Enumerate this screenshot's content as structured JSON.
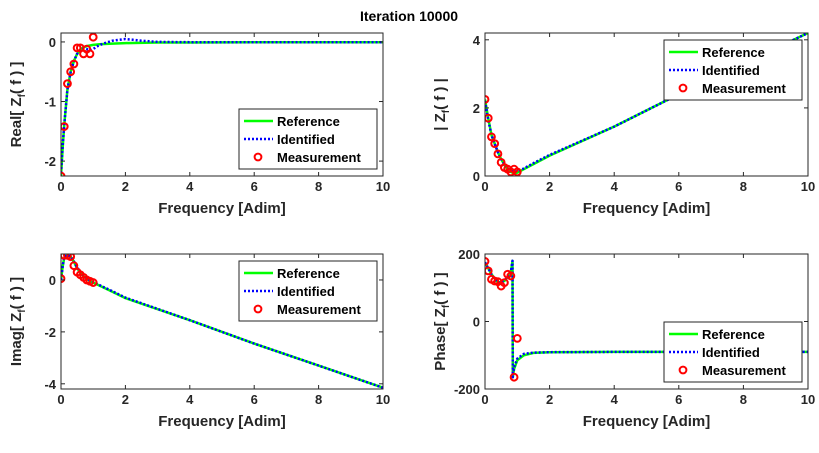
{
  "figure": {
    "title": "Iteration 10000"
  },
  "colors": {
    "reference": "#00ff00",
    "identified": "#0000ff",
    "measurement": "#ff0000",
    "axes": "#262626"
  },
  "legend": {
    "entries": [
      "Reference",
      "Identified",
      "Measurement"
    ]
  },
  "chart_data": [
    {
      "type": "line",
      "ylabel_main": "Real[ Z",
      "ylabel_sub": "f",
      "ylabel_tail": "( f ) ]",
      "xlabel": "Frequency [Adim]",
      "xlim": [
        0,
        10
      ],
      "ylim": [
        -2.25,
        0.15
      ],
      "xticks": [
        0,
        2,
        4,
        6,
        8,
        10
      ],
      "xtick_labels": [
        "0",
        "2",
        "4",
        "6",
        "8",
        "10"
      ],
      "yticks": [
        -2,
        -1,
        0
      ],
      "ytick_labels": [
        "-2",
        "-1",
        "0"
      ],
      "legend_position": "bottom-right",
      "series": [
        {
          "name": "Reference",
          "style": "solid",
          "x": [
            0,
            0.05,
            0.1,
            0.2,
            0.3,
            0.4,
            0.5,
            0.6,
            0.7,
            0.8,
            0.9,
            1.0,
            1.2,
            1.5,
            2,
            3,
            4,
            6,
            8,
            10
          ],
          "y": [
            -2.25,
            -1.8,
            -1.4,
            -0.8,
            -0.5,
            -0.32,
            -0.2,
            -0.13,
            -0.09,
            -0.07,
            -0.06,
            -0.05,
            -0.04,
            -0.03,
            -0.02,
            -0.01,
            -0.01,
            -0.005,
            -0.005,
            -0.005
          ]
        },
        {
          "name": "Identified",
          "style": "dotted",
          "x": [
            0,
            0.05,
            0.1,
            0.2,
            0.3,
            0.4,
            0.5,
            0.6,
            0.7,
            0.8,
            0.9,
            1.0,
            1.1,
            1.3,
            1.6,
            2.0,
            2.5,
            3,
            4,
            6,
            8,
            10
          ],
          "y": [
            -2.2,
            -1.75,
            -1.4,
            -0.8,
            -0.5,
            -0.32,
            -0.2,
            -0.14,
            -0.11,
            -0.12,
            -0.14,
            -0.12,
            -0.08,
            -0.03,
            0.02,
            0.05,
            0.02,
            0.0,
            -0.005,
            -0.005,
            -0.005,
            -0.005
          ]
        },
        {
          "name": "Measurement",
          "style": "marker",
          "x": [
            0,
            0.1,
            0.2,
            0.3,
            0.4,
            0.5,
            0.6,
            0.7,
            0.8,
            0.9,
            1.0
          ],
          "y": [
            -2.25,
            -1.42,
            -0.7,
            -0.5,
            -0.37,
            -0.1,
            -0.1,
            -0.2,
            -0.12,
            -0.2,
            0.08
          ]
        }
      ]
    },
    {
      "type": "line",
      "ylabel_main": "| Z",
      "ylabel_sub": "f",
      "ylabel_tail": "( f ) |",
      "xlabel": "Frequency [Adim]",
      "xlim": [
        0,
        10
      ],
      "ylim": [
        0,
        4.2
      ],
      "xticks": [
        0,
        2,
        4,
        6,
        8,
        10
      ],
      "xtick_labels": [
        "0",
        "2",
        "4",
        "6",
        "8",
        "10"
      ],
      "yticks": [
        0,
        2,
        4
      ],
      "ytick_labels": [
        "0",
        "2",
        "4"
      ],
      "legend_position": "top-right",
      "series": [
        {
          "name": "Reference",
          "style": "solid",
          "x": [
            0,
            0.1,
            0.2,
            0.3,
            0.4,
            0.5,
            0.6,
            0.7,
            0.8,
            0.9,
            1.0,
            1.2,
            1.5,
            2,
            4,
            6,
            8,
            10
          ],
          "y": [
            2.25,
            1.7,
            1.2,
            0.95,
            0.7,
            0.5,
            0.33,
            0.2,
            0.12,
            0.08,
            0.1,
            0.2,
            0.35,
            0.6,
            1.45,
            2.4,
            3.3,
            4.2
          ]
        },
        {
          "name": "Identified",
          "style": "dotted",
          "x": [
            0,
            0.1,
            0.2,
            0.3,
            0.4,
            0.5,
            0.6,
            0.7,
            0.8,
            0.9,
            1.0,
            1.2,
            1.5,
            2,
            4,
            6,
            8,
            10
          ],
          "y": [
            2.2,
            1.65,
            1.2,
            0.95,
            0.7,
            0.5,
            0.35,
            0.22,
            0.15,
            0.12,
            0.14,
            0.22,
            0.38,
            0.62,
            1.45,
            2.4,
            3.3,
            4.2
          ]
        },
        {
          "name": "Measurement",
          "style": "marker",
          "x": [
            0,
            0.1,
            0.2,
            0.3,
            0.4,
            0.5,
            0.6,
            0.7,
            0.8,
            0.9,
            1.0
          ],
          "y": [
            2.25,
            1.7,
            1.15,
            0.95,
            0.65,
            0.4,
            0.25,
            0.2,
            0.12,
            0.2,
            0.12
          ]
        }
      ]
    },
    {
      "type": "line",
      "ylabel_main": "Imag[ Z",
      "ylabel_sub": "f",
      "ylabel_tail": "( f ) ]",
      "xlabel": "Frequency [Adim]",
      "xlim": [
        0,
        10
      ],
      "ylim": [
        -4.2,
        1.0
      ],
      "xticks": [
        0,
        2,
        4,
        6,
        8,
        10
      ],
      "xtick_labels": [
        "0",
        "2",
        "4",
        "6",
        "8",
        "10"
      ],
      "yticks": [
        -4,
        -2,
        0
      ],
      "ytick_labels": [
        "-4",
        "-2",
        "0"
      ],
      "legend_position": "top-right",
      "series": [
        {
          "name": "Reference",
          "style": "solid",
          "x": [
            0,
            0.05,
            0.1,
            0.2,
            0.3,
            0.4,
            0.5,
            0.6,
            0.7,
            0.8,
            0.9,
            1.0,
            1.5,
            2,
            4,
            6,
            8,
            10
          ],
          "y": [
            0.0,
            0.5,
            0.85,
            0.95,
            0.9,
            0.7,
            0.45,
            0.3,
            0.15,
            0.05,
            -0.05,
            -0.1,
            -0.4,
            -0.7,
            -1.55,
            -2.45,
            -3.3,
            -4.15
          ]
        },
        {
          "name": "Identified",
          "style": "dotted",
          "x": [
            0,
            0.05,
            0.1,
            0.2,
            0.3,
            0.4,
            0.5,
            0.6,
            0.7,
            0.8,
            0.9,
            1.0,
            1.5,
            2,
            4,
            6,
            8,
            10
          ],
          "y": [
            0.0,
            0.5,
            0.9,
            0.95,
            0.9,
            0.72,
            0.48,
            0.32,
            0.18,
            0.08,
            -0.02,
            -0.08,
            -0.38,
            -0.68,
            -1.55,
            -2.45,
            -3.3,
            -4.15
          ]
        },
        {
          "name": "Measurement",
          "style": "marker",
          "x": [
            0,
            0.1,
            0.2,
            0.3,
            0.4,
            0.5,
            0.6,
            0.7,
            0.8,
            0.9,
            1.0
          ],
          "y": [
            0.05,
            0.95,
            0.95,
            0.9,
            0.55,
            0.3,
            0.2,
            0.1,
            0.0,
            -0.05,
            -0.1
          ]
        }
      ]
    },
    {
      "type": "line",
      "ylabel_main": "Phase[ Z",
      "ylabel_sub": "f",
      "ylabel_tail": "( f ) ]",
      "xlabel": "Frequency [Adim]",
      "xlim": [
        0,
        10
      ],
      "ylim": [
        -200,
        200
      ],
      "xticks": [
        0,
        2,
        4,
        6,
        8,
        10
      ],
      "xtick_labels": [
        "0",
        "2",
        "4",
        "6",
        "8",
        "10"
      ],
      "yticks": [
        -200,
        0,
        200
      ],
      "ytick_labels": [
        "-200",
        "0",
        "200"
      ],
      "legend_position": "bottom-right",
      "series": [
        {
          "name": "Reference",
          "style": "solid",
          "x": [
            0,
            0.2,
            0.4,
            0.6,
            0.8,
            0.85,
            0.86,
            0.9,
            1.0,
            1.2,
            1.5,
            2,
            4,
            6,
            8,
            10
          ],
          "y": [
            175,
            140,
            115,
            120,
            145,
            180,
            -165,
            -140,
            -115,
            -100,
            -93,
            -91,
            -90,
            -90,
            -90,
            -90
          ]
        },
        {
          "name": "Identified",
          "style": "dotted",
          "x": [
            0,
            0.2,
            0.4,
            0.6,
            0.8,
            0.85,
            0.86,
            0.9,
            1.0,
            1.2,
            1.5,
            2,
            4,
            6,
            8,
            10
          ],
          "y": [
            175,
            140,
            115,
            120,
            145,
            180,
            -165,
            -135,
            -110,
            -96,
            -92,
            -91,
            -90,
            -90,
            -90,
            -90
          ]
        },
        {
          "name": "Measurement",
          "style": "marker",
          "x": [
            0,
            0.1,
            0.2,
            0.3,
            0.4,
            0.5,
            0.6,
            0.7,
            0.8,
            0.9,
            1.0
          ],
          "y": [
            178,
            150,
            125,
            120,
            118,
            105,
            115,
            140,
            135,
            -165,
            -50
          ]
        }
      ]
    }
  ]
}
